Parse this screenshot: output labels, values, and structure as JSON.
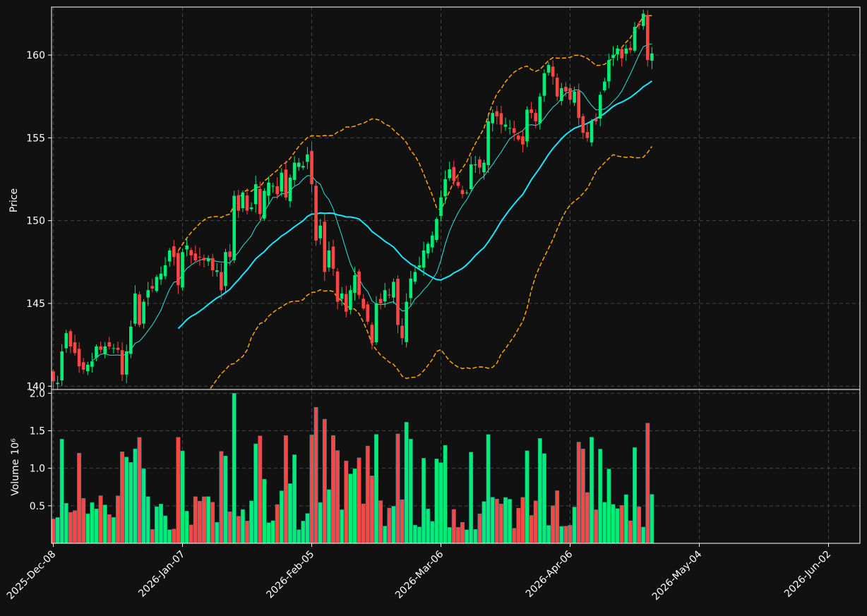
{
  "chart_data": {
    "type": "candlestick",
    "xlabel": "",
    "x_tick_labels": [
      "2025-Dec-08",
      "2026-Jan-07",
      "2026-Feb-05",
      "2026-Mar-06",
      "2026-Apr-06",
      "2026-May-04",
      "2026-Jun-02"
    ],
    "x_tick_bar_index": [
      0,
      30,
      60,
      90,
      120,
      150,
      180
    ],
    "price_panel": {
      "ylabel": "Price",
      "ylim": [
        139.8,
        162.9
      ],
      "yticks": [
        140,
        145,
        150,
        155,
        160
      ],
      "grid": true,
      "overlays": [
        {
          "kind": "moving average (short)",
          "color": "#2ee6d6"
        },
        {
          "kind": "moving average (long)",
          "color": "#1fe6ff"
        },
        {
          "kind": "bollinger bands",
          "color": "#ffa500",
          "style": "dashed"
        }
      ],
      "up_color": "#00ee76",
      "down_color": "#ff4444",
      "close_series": [
        140.3,
        140.2,
        142.1,
        143.2,
        142.4,
        142.0,
        141.2,
        141.0,
        141.3,
        141.5,
        142.4,
        142.2,
        142.4,
        142.4,
        142.3,
        142.2,
        140.7,
        142.1,
        143.6,
        145.6,
        143.7,
        145.1,
        145.8,
        145.9,
        146.6,
        146.8,
        147.3,
        148.2,
        147.8,
        146.1,
        148.1,
        148.5,
        147.9,
        147.6,
        147.8,
        147.6,
        147.7,
        147.0,
        147.0,
        145.8,
        148.1,
        147.8,
        151.5,
        150.6,
        151.7,
        150.6,
        150.8,
        152.2,
        150.4,
        151.8,
        152.3,
        152.1,
        151.6,
        152.9,
        151.4,
        152.6,
        153.5,
        153.5,
        153.3,
        154.0,
        152.2,
        148.8,
        149.7,
        146.9,
        148.2,
        147.1,
        145.1,
        145.6,
        144.5,
        145.8,
        146.7,
        145.5,
        144.7,
        143.9,
        142.6,
        145.0,
        145.0,
        145.8,
        145.5,
        146.3,
        143.7,
        142.9,
        145.1,
        146.5,
        146.9,
        147.3,
        148.2,
        148.6,
        149.1,
        150.1,
        151.4,
        152.5,
        153.1,
        152.4,
        152.1,
        151.6,
        151.7,
        153.4,
        153.4,
        153.2,
        153.5,
        156.0,
        156.5,
        156.3,
        155.8,
        155.8,
        155.6,
        155.3,
        154.9,
        154.6,
        156.7,
        156.5,
        156.0,
        157.5,
        158.9,
        159.4,
        158.7,
        157.5,
        158.0,
        157.8,
        157.3,
        157.8,
        156.2,
        155.3,
        155.0,
        156.0,
        156.0,
        157.6,
        158.4,
        159.7,
        160.0,
        160.4,
        159.8,
        160.4,
        160.3,
        161.7,
        161.8,
        162.5,
        159.7,
        160.1
      ]
    },
    "volume_panel": {
      "ylabel": "Volume",
      "scale_label": "10⁶",
      "ylim": [
        0.0,
        2.05
      ],
      "yticks": [
        0.5,
        1.0,
        1.5,
        2.0
      ],
      "grid": true
    },
    "grid": true
  }
}
